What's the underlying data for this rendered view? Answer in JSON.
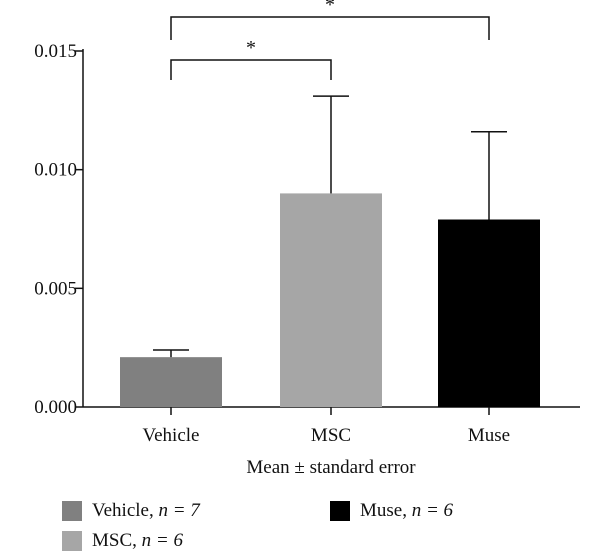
{
  "chart_data": {
    "type": "bar",
    "categories": [
      "Vehicle",
      "MSC",
      "Muse"
    ],
    "values": [
      0.0021,
      0.009,
      0.0079
    ],
    "errors": [
      0.0003,
      0.0041,
      0.0037
    ],
    "colors": [
      "#808080",
      "#a6a6a6",
      "#000000"
    ],
    "ylim": [
      0,
      0.015
    ],
    "yticks": [
      "0.000",
      "0.005",
      "0.010",
      "0.015"
    ],
    "ytick_values": [
      0,
      0.005,
      0.01,
      0.015
    ],
    "xlabel": "Mean ± standard error",
    "ylabel": "",
    "significance": [
      {
        "from": "Vehicle",
        "to": "MSC",
        "label": "*"
      },
      {
        "from": "Vehicle",
        "to": "Muse",
        "label": "*"
      }
    ],
    "legend": [
      {
        "label": "Vehicle, ",
        "n": "n = 7",
        "color": "#808080"
      },
      {
        "label": "MSC, ",
        "n": "n = 6",
        "color": "#a6a6a6"
      },
      {
        "label": "Muse, ",
        "n": "n = 6",
        "color": "#000000"
      }
    ]
  }
}
